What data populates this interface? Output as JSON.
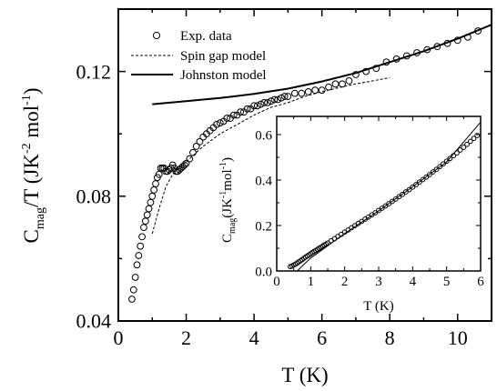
{
  "chart_data": [
    {
      "type": "scatter",
      "xlabel": "T (K)",
      "ylabel": "C_mag/T (JK^-2 mol^-1)",
      "ylabel_parts": {
        "main": "C",
        "sub": "mag",
        "rest": "/T (JK",
        "sup1": "-2",
        "mid": " mol",
        "sup2": "-1",
        "end": ")"
      },
      "xlim": [
        0,
        11
      ],
      "ylim": [
        0.04,
        0.14
      ],
      "xticks": [
        "0",
        "2",
        "4",
        "6",
        "8",
        "10"
      ],
      "yticks": [
        "0.04",
        "0.08",
        "0.12"
      ],
      "legend_position": "top-left",
      "legend": [
        "Exp. data",
        "Spin gap model",
        "Johnston model"
      ],
      "series": [
        {
          "name": "Exp. data",
          "style": "open-circle",
          "x": [
            0.4,
            0.45,
            0.5,
            0.55,
            0.6,
            0.65,
            0.7,
            0.75,
            0.8,
            0.85,
            0.9,
            0.95,
            1.0,
            1.05,
            1.1,
            1.15,
            1.2,
            1.25,
            1.3,
            1.35,
            1.4,
            1.45,
            1.5,
            1.55,
            1.6,
            1.65,
            1.7,
            1.75,
            1.8,
            1.85,
            1.9,
            1.95,
            2.0,
            2.1,
            2.2,
            2.3,
            2.4,
            2.5,
            2.6,
            2.7,
            2.8,
            2.9,
            3.0,
            3.1,
            3.2,
            3.3,
            3.4,
            3.5,
            3.6,
            3.7,
            3.8,
            3.9,
            4.0,
            4.1,
            4.2,
            4.3,
            4.4,
            4.5,
            4.6,
            4.7,
            4.8,
            4.9,
            5.0,
            5.2,
            5.4,
            5.6,
            5.8,
            6.0,
            6.2,
            6.4,
            6.6,
            6.8,
            7.0,
            7.3,
            7.6,
            7.9,
            8.2,
            8.5,
            8.8,
            9.1,
            9.4,
            9.7,
            10.0,
            10.3,
            10.6
          ],
          "y": [
            0.047,
            0.05,
            0.054,
            0.058,
            0.061,
            0.064,
            0.067,
            0.07,
            0.072,
            0.074,
            0.076,
            0.078,
            0.08,
            0.082,
            0.084,
            0.086,
            0.087,
            0.089,
            0.089,
            0.089,
            0.088,
            0.088,
            0.0885,
            0.089,
            0.09,
            0.089,
            0.088,
            0.088,
            0.0885,
            0.089,
            0.0895,
            0.09,
            0.0905,
            0.092,
            0.094,
            0.096,
            0.0975,
            0.099,
            0.1,
            0.101,
            0.102,
            0.103,
            0.1035,
            0.104,
            0.105,
            0.105,
            0.106,
            0.106,
            0.107,
            0.107,
            0.108,
            0.108,
            0.109,
            0.109,
            0.1095,
            0.11,
            0.11,
            0.1105,
            0.111,
            0.111,
            0.1115,
            0.112,
            0.112,
            0.113,
            0.113,
            0.1135,
            0.114,
            0.114,
            0.115,
            0.116,
            0.116,
            0.117,
            0.119,
            0.12,
            0.121,
            0.123,
            0.124,
            0.125,
            0.126,
            0.127,
            0.128,
            0.129,
            0.13,
            0.131,
            0.133
          ]
        },
        {
          "name": "Spin gap model",
          "style": "dashed",
          "x": [
            1.0,
            1.2,
            1.4,
            1.6,
            1.8,
            2.0,
            2.5,
            3.0,
            3.5,
            4.0,
            4.5,
            5.0,
            5.5,
            6.0,
            6.5,
            7.0,
            7.5,
            8.0
          ],
          "y": [
            0.068,
            0.076,
            0.083,
            0.087,
            0.089,
            0.091,
            0.096,
            0.1,
            0.103,
            0.106,
            0.1085,
            0.11,
            0.112,
            0.1135,
            0.1148,
            0.116,
            0.117,
            0.118
          ]
        },
        {
          "name": "Johnston model",
          "style": "solid",
          "x": [
            1.0,
            2.0,
            3.0,
            4.0,
            5.0,
            6.0,
            7.0,
            8.0,
            9.0,
            10.0,
            11.0
          ],
          "y": [
            0.1095,
            0.1105,
            0.1115,
            0.1128,
            0.1145,
            0.1168,
            0.1195,
            0.123,
            0.1265,
            0.1305,
            0.135
          ]
        }
      ]
    },
    {
      "type": "scatter",
      "inset": true,
      "xlabel": "T (K)",
      "ylabel": "C_mag (JK^-1 mol^-1)",
      "ylabel_parts": {
        "main": "C",
        "sub": "mag",
        "rest": "(JK",
        "sup1": "-1",
        "mid": "mol",
        "sup2": "-1",
        "end": ")"
      },
      "xlim": [
        0,
        6
      ],
      "ylim": [
        0,
        0.68
      ],
      "xticks": [
        "0",
        "1",
        "2",
        "3",
        "4",
        "5",
        "6"
      ],
      "yticks": [
        "0.0",
        "0.2",
        "0.4",
        "0.6"
      ],
      "series": [
        {
          "style": "open-circle",
          "x": [
            0.4,
            0.45,
            0.5,
            0.55,
            0.6,
            0.65,
            0.7,
            0.75,
            0.8,
            0.85,
            0.9,
            0.95,
            1.0,
            1.05,
            1.1,
            1.15,
            1.2,
            1.25,
            1.3,
            1.35,
            1.4,
            1.45,
            1.5,
            1.6,
            1.7,
            1.8,
            1.9,
            2.0,
            2.1,
            2.2,
            2.3,
            2.4,
            2.5,
            2.6,
            2.7,
            2.8,
            2.9,
            3.0,
            3.1,
            3.2,
            3.3,
            3.4,
            3.5,
            3.6,
            3.7,
            3.8,
            3.9,
            4.0,
            4.1,
            4.2,
            4.3,
            4.4,
            4.5,
            4.6,
            4.7,
            4.8,
            4.9,
            5.0,
            5.1,
            5.2,
            5.3,
            5.4,
            5.5,
            5.6,
            5.7,
            5.8,
            5.9
          ],
          "y": [
            0.019,
            0.022,
            0.026,
            0.03,
            0.035,
            0.04,
            0.045,
            0.05,
            0.056,
            0.061,
            0.066,
            0.071,
            0.076,
            0.081,
            0.086,
            0.09,
            0.095,
            0.1,
            0.104,
            0.109,
            0.114,
            0.118,
            0.123,
            0.133,
            0.142,
            0.152,
            0.161,
            0.171,
            0.18,
            0.19,
            0.199,
            0.209,
            0.218,
            0.228,
            0.237,
            0.247,
            0.256,
            0.266,
            0.276,
            0.286,
            0.296,
            0.306,
            0.316,
            0.327,
            0.337,
            0.348,
            0.358,
            0.369,
            0.38,
            0.391,
            0.402,
            0.413,
            0.424,
            0.436,
            0.447,
            0.459,
            0.471,
            0.483,
            0.495,
            0.507,
            0.519,
            0.532,
            0.544,
            0.557,
            0.57,
            0.583,
            0.596
          ]
        },
        {
          "style": "solid",
          "x": [
            0.6,
            1.0,
            2.0,
            3.0,
            4.0,
            5.0,
            6.0
          ],
          "y": [
            0.0,
            0.057,
            0.165,
            0.265,
            0.37,
            0.48,
            0.655
          ]
        }
      ]
    }
  ]
}
